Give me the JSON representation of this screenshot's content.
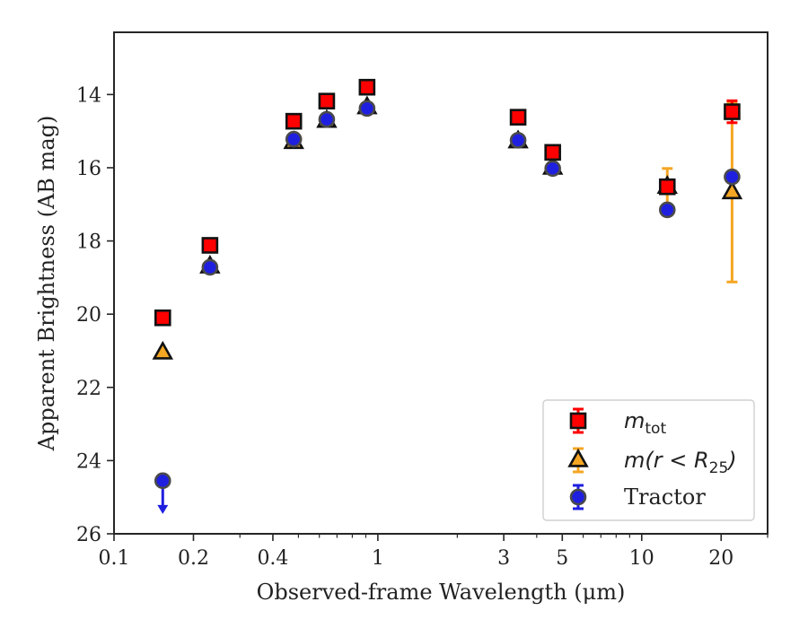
{
  "chart_data": {
    "type": "scatter",
    "title": "",
    "xlabel": "Observed-frame Wavelength (μm)",
    "ylabel": "Apparent Brightness (AB mag)",
    "xscale": "log",
    "xlim": [
      0.1,
      30
    ],
    "ylim": [
      26,
      12.3
    ],
    "y_inverted": true,
    "x_ticks": [
      0.1,
      0.2,
      0.4,
      1,
      3,
      5,
      10,
      20
    ],
    "x_tick_labels": [
      "0.1",
      "0.2",
      "0.4",
      "1",
      "3",
      "5",
      "10",
      "20"
    ],
    "y_ticks": [
      14,
      16,
      18,
      20,
      22,
      24,
      26
    ],
    "y_tick_labels": [
      "14",
      "16",
      "18",
      "20",
      "22",
      "24",
      "26"
    ],
    "legend_position": "lower-right",
    "grid": false,
    "series": [
      {
        "name": "m_tot",
        "legend_label": "m",
        "legend_sub": "tot",
        "marker": "square",
        "color": "#ff0000",
        "errcolor": "#ff0000",
        "points": [
          {
            "x": 0.153,
            "y": 20.1,
            "err": 0.05
          },
          {
            "x": 0.231,
            "y": 18.12,
            "err": 0.05
          },
          {
            "x": 0.48,
            "y": 14.73,
            "err": 0.03
          },
          {
            "x": 0.64,
            "y": 14.18,
            "err": 0.03
          },
          {
            "x": 0.91,
            "y": 13.8,
            "err": 0.03
          },
          {
            "x": 3.4,
            "y": 14.62,
            "err": 0.03
          },
          {
            "x": 4.6,
            "y": 15.58,
            "err": 0.03
          },
          {
            "x": 12.5,
            "y": 16.52,
            "err": 0.05
          },
          {
            "x": 22.0,
            "y": 14.47,
            "err": 0.3
          }
        ]
      },
      {
        "name": "m(r<R25)",
        "legend_label": "m(r < R",
        "legend_sub": "25",
        "legend_suffix": ")",
        "marker": "triangle",
        "color": "#f5a623",
        "errcolor": "#f5a623",
        "points": [
          {
            "x": 0.153,
            "y": 21.05,
            "err": 0.05
          },
          {
            "x": 0.231,
            "y": 18.7,
            "err": 0.05
          },
          {
            "x": 0.48,
            "y": 15.3,
            "err": 0.03
          },
          {
            "x": 0.64,
            "y": 14.72,
            "err": 0.03
          },
          {
            "x": 0.91,
            "y": 14.35,
            "err": 0.03
          },
          {
            "x": 3.4,
            "y": 15.28,
            "err": 0.03
          },
          {
            "x": 4.6,
            "y": 16.0,
            "err": 0.03
          },
          {
            "x": 12.5,
            "y": 16.52,
            "err": 0.5
          },
          {
            "x": 22.0,
            "y": 16.67,
            "err_low": 2.45,
            "err_high": 2.45
          }
        ]
      },
      {
        "name": "Tractor",
        "legend_label": "Tractor",
        "marker": "circle",
        "color": "#1f1fe0",
        "errcolor": "#1f1fe0",
        "points": [
          {
            "x": 0.153,
            "y": 24.55,
            "upper_limit": true
          },
          {
            "x": 0.231,
            "y": 18.72,
            "err": 0.05
          },
          {
            "x": 0.48,
            "y": 15.22,
            "err": 0.03
          },
          {
            "x": 0.64,
            "y": 14.68,
            "err": 0.03
          },
          {
            "x": 0.91,
            "y": 14.38,
            "err": 0.03
          },
          {
            "x": 3.4,
            "y": 15.25,
            "err": 0.03
          },
          {
            "x": 4.6,
            "y": 16.02,
            "err": 0.03
          },
          {
            "x": 12.5,
            "y": 17.15,
            "err": 0.05
          },
          {
            "x": 22.0,
            "y": 16.25,
            "err": 0.1
          }
        ]
      }
    ]
  }
}
